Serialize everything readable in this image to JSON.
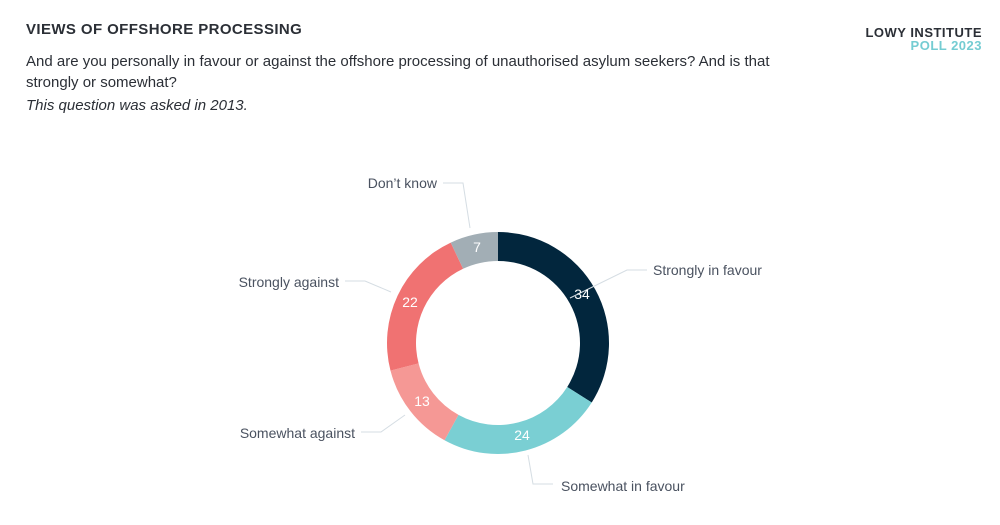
{
  "header": {
    "title": "VIEWS OF OFFSHORE PROCESSING",
    "question": "And are you personally in favour or against the offshore processing of unauthorised asylum seekers? And is that strongly or somewhat?",
    "note": "This question was asked in 2013.",
    "brand_line1": "LOWY INSTITUTE",
    "brand_line2": "POLL 2023"
  },
  "colors": {
    "strongly_in_favour": "#02263d",
    "somewhat_in_favour": "#7acfd3",
    "somewhat_against": "#f59895",
    "strongly_against": "#f07272",
    "dont_know": "#a2aeb5"
  },
  "chart_data": {
    "type": "pie",
    "variant": "donut",
    "title": "VIEWS OF OFFSHORE PROCESSING",
    "subtitle": "And are you personally in favour or against the offshore processing of unauthorised asylum seekers? And is that strongly or somewhat?",
    "categories": [
      "Strongly in favour",
      "Somewhat in favour",
      "Somewhat against",
      "Strongly against",
      "Don't know"
    ],
    "values": [
      34,
      24,
      13,
      22,
      7
    ],
    "colors": [
      "#02263d",
      "#7acfd3",
      "#f59895",
      "#f07272",
      "#a2aeb5"
    ],
    "unit": "%",
    "annotations": [
      "This question was asked in 2013."
    ]
  },
  "labels": {
    "strongly_in_favour": "Strongly in favour",
    "somewhat_in_favour": "Somewhat in favour",
    "somewhat_against": "Somewhat against",
    "strongly_against": "Strongly against",
    "dont_know": "Don’t know"
  },
  "values": {
    "strongly_in_favour": "34",
    "somewhat_in_favour": "24",
    "somewhat_against": "13",
    "strongly_against": "22",
    "dont_know": "7"
  }
}
